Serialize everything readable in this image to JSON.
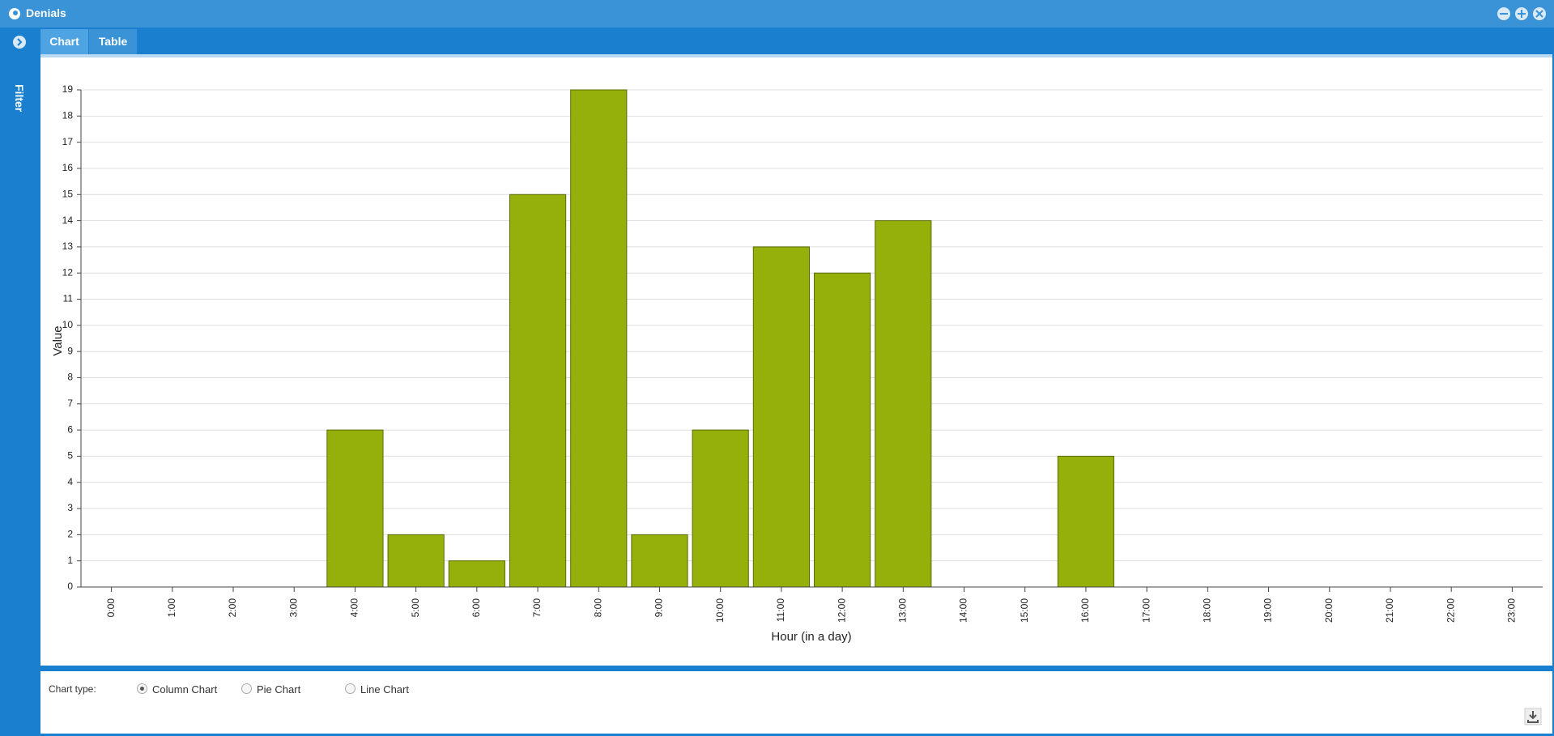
{
  "window": {
    "title": "Denials",
    "sidebar": "Filter",
    "tabs": [
      "Chart",
      "Table"
    ]
  },
  "controls": {
    "label": "Chart type:",
    "options": [
      "Column Chart",
      "Pie Chart",
      "Line Chart"
    ]
  },
  "chart_data": {
    "type": "bar",
    "x_label": "Hour (in a day)",
    "y_label": "Value",
    "categories": [
      "0:00",
      "1:00",
      "2:00",
      "3:00",
      "4:00",
      "5:00",
      "6:00",
      "7:00",
      "8:00",
      "9:00",
      "10:00",
      "11:00",
      "12:00",
      "13:00",
      "14:00",
      "15:00",
      "16:00",
      "17:00",
      "18:00",
      "19:00",
      "20:00",
      "21:00",
      "22:00",
      "23:00"
    ],
    "values": [
      0,
      0,
      0,
      0,
      6,
      2,
      1,
      15,
      19,
      2,
      6,
      13,
      12,
      14,
      0,
      0,
      5,
      0,
      0,
      0,
      0,
      0,
      0,
      0
    ],
    "color": "#95b00a",
    "ylim": [
      0,
      19
    ],
    "yticks": [
      0,
      1,
      2,
      3,
      4,
      5,
      6,
      7,
      8,
      9,
      10,
      11,
      12,
      13,
      14,
      15,
      16,
      17,
      18,
      19
    ],
    "grid": true
  }
}
